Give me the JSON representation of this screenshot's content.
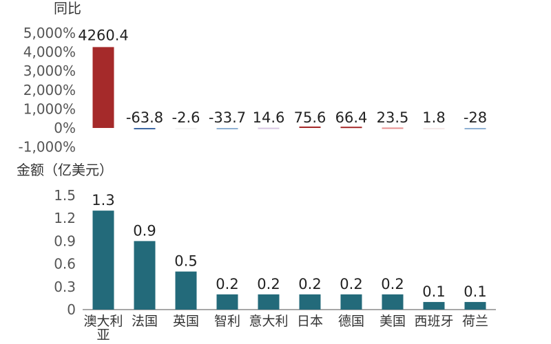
{
  "chart_data": [
    {
      "type": "bar",
      "title": "同比",
      "categories": [
        "澳大利亚",
        "法国",
        "英国",
        "智利",
        "意大利",
        "日本",
        "德国",
        "美国",
        "西班牙",
        "荷兰"
      ],
      "values": [
        4260.4,
        -63.8,
        -2.6,
        -33.7,
        14.6,
        75.6,
        66.4,
        23.5,
        1.8,
        -28
      ],
      "value_labels": [
        "4260.4",
        "-63.8",
        "-2.6",
        "-33.7",
        "14.6",
        "75.6",
        "66.4",
        "23.5",
        "1.8",
        "-28"
      ],
      "bar_colors": [
        "#a52a2a",
        "#3d67a3",
        "#f4f4f4",
        "#8eb0d3",
        "#d8c7e3",
        "#a52a2a",
        "#a52a2a",
        "#e89090",
        "#f4e8e8",
        "#8eb0d3"
      ],
      "ylim": [
        -1000,
        5000
      ],
      "yticks": [
        5000,
        4000,
        3000,
        2000,
        1000,
        0,
        -1000
      ],
      "ytick_labels": [
        "5,000%",
        "4,000%",
        "3,000%",
        "2,000%",
        "1,000%",
        "0%",
        "-1,000%"
      ],
      "grid": false,
      "legend": "none"
    },
    {
      "type": "bar",
      "title": "金额（亿美元）",
      "categories": [
        "澳大利亚",
        "法国",
        "英国",
        "智利",
        "意大利",
        "日本",
        "德国",
        "美国",
        "西班牙",
        "荷兰"
      ],
      "category_lines": [
        [
          "澳大利",
          "亚"
        ],
        [
          "法国"
        ],
        [
          "英国"
        ],
        [
          "智利"
        ],
        [
          "意大利"
        ],
        [
          "日本"
        ],
        [
          "德国"
        ],
        [
          "美国"
        ],
        [
          "西班牙"
        ],
        [
          "荷兰"
        ]
      ],
      "values": [
        1.3,
        0.9,
        0.5,
        0.2,
        0.2,
        0.2,
        0.2,
        0.2,
        0.1,
        0.1
      ],
      "value_labels": [
        "1.3",
        "0.9",
        "0.5",
        "0.2",
        "0.2",
        "0.2",
        "0.2",
        "0.2",
        "0.1",
        "0.1"
      ],
      "bar_color": "#236a7a",
      "ylim": [
        0,
        1.5
      ],
      "yticks": [
        1.5,
        1.2,
        0.9,
        0.6,
        0.3,
        0
      ],
      "ytick_labels": [
        "1.5",
        "1.2",
        "0.9",
        "0.6",
        "0.3",
        "0"
      ],
      "grid": false,
      "legend": "none"
    }
  ],
  "colors": {
    "text": "#333333",
    "tick_text": "#555555",
    "axis": "#8a8a8a"
  }
}
